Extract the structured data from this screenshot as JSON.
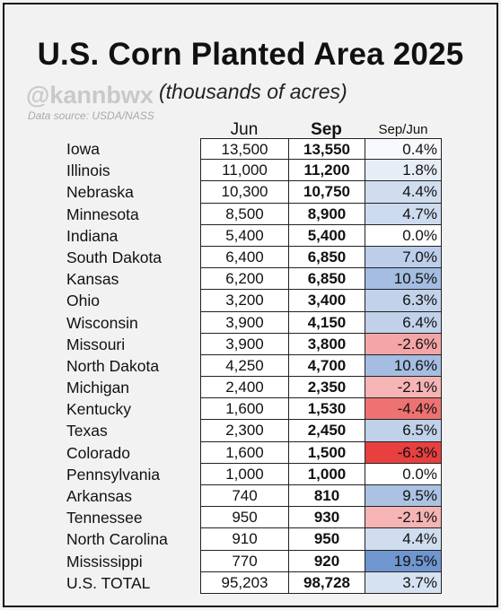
{
  "title": "U.S. Corn Planted Area 2025",
  "subtitle": "(thousands of acres)",
  "watermark": "@kannbwx",
  "source": "Data source: USDA/NASS",
  "chart_data": {
    "type": "table",
    "columns": [
      "Jun",
      "Sep",
      "Sep/Jun"
    ],
    "rows": [
      {
        "state": "Iowa",
        "jun": "13,500",
        "sep": "13,550",
        "pct": "0.4%",
        "pct_value": 0.4
      },
      {
        "state": "Illinois",
        "jun": "11,000",
        "sep": "11,200",
        "pct": "1.8%",
        "pct_value": 1.8
      },
      {
        "state": "Nebraska",
        "jun": "10,300",
        "sep": "10,750",
        "pct": "4.4%",
        "pct_value": 4.4
      },
      {
        "state": "Minnesota",
        "jun": "8,500",
        "sep": "8,900",
        "pct": "4.7%",
        "pct_value": 4.7
      },
      {
        "state": "Indiana",
        "jun": "5,400",
        "sep": "5,400",
        "pct": "0.0%",
        "pct_value": 0.0
      },
      {
        "state": "South Dakota",
        "jun": "6,400",
        "sep": "6,850",
        "pct": "7.0%",
        "pct_value": 7.0
      },
      {
        "state": "Kansas",
        "jun": "6,200",
        "sep": "6,850",
        "pct": "10.5%",
        "pct_value": 10.5
      },
      {
        "state": "Ohio",
        "jun": "3,200",
        "sep": "3,400",
        "pct": "6.3%",
        "pct_value": 6.3
      },
      {
        "state": "Wisconsin",
        "jun": "3,900",
        "sep": "4,150",
        "pct": "6.4%",
        "pct_value": 6.4
      },
      {
        "state": "Missouri",
        "jun": "3,900",
        "sep": "3,800",
        "pct": "-2.6%",
        "pct_value": -2.6
      },
      {
        "state": "North Dakota",
        "jun": "4,250",
        "sep": "4,700",
        "pct": "10.6%",
        "pct_value": 10.6
      },
      {
        "state": "Michigan",
        "jun": "2,400",
        "sep": "2,350",
        "pct": "-2.1%",
        "pct_value": -2.1
      },
      {
        "state": "Kentucky",
        "jun": "1,600",
        "sep": "1,530",
        "pct": "-4.4%",
        "pct_value": -4.4
      },
      {
        "state": "Texas",
        "jun": "2,300",
        "sep": "2,450",
        "pct": "6.5%",
        "pct_value": 6.5
      },
      {
        "state": "Colorado",
        "jun": "1,600",
        "sep": "1,500",
        "pct": "-6.3%",
        "pct_value": -6.3
      },
      {
        "state": "Pennsylvania",
        "jun": "1,000",
        "sep": "1,000",
        "pct": "0.0%",
        "pct_value": 0.0
      },
      {
        "state": "Arkansas",
        "jun": "740",
        "sep": "810",
        "pct": "9.5%",
        "pct_value": 9.5
      },
      {
        "state": "Tennessee",
        "jun": "950",
        "sep": "930",
        "pct": "-2.1%",
        "pct_value": -2.1
      },
      {
        "state": "North Carolina",
        "jun": "910",
        "sep": "950",
        "pct": "4.4%",
        "pct_value": 4.4
      },
      {
        "state": "Mississippi",
        "jun": "770",
        "sep": "920",
        "pct": "19.5%",
        "pct_value": 19.5
      },
      {
        "state": "U.S. TOTAL",
        "jun": "95,203",
        "sep": "98,728",
        "pct": "3.7%",
        "pct_value": 3.7
      }
    ],
    "colors": {
      "positive_max": "#6f96cf",
      "negative_max": "#e8403f",
      "neutral": "#ffffff"
    }
  }
}
